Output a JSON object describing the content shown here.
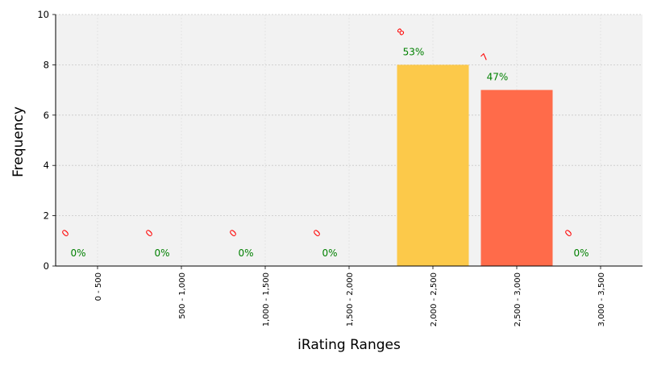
{
  "chart_data": {
    "type": "bar",
    "xlabel": "iRating Ranges",
    "ylabel": "Frequency",
    "ylim": [
      0,
      10
    ],
    "yticks": [
      0,
      2,
      4,
      6,
      8,
      10
    ],
    "grid": true,
    "categories": [
      "0 - 500",
      "500 - 1,000",
      "1,000 - 1,500",
      "1,500 - 2,000",
      "2,000 - 2,500",
      "2,500 - 3,000",
      "3,000 - 3,500"
    ],
    "values": [
      0,
      0,
      0,
      0,
      8,
      7,
      0
    ],
    "count_labels": [
      "0",
      "0",
      "0",
      "0",
      "8",
      "7",
      "0"
    ],
    "percent_labels": [
      "0%",
      "0%",
      "0%",
      "0%",
      "53%",
      "47%",
      "0%"
    ],
    "bar_colors": [
      "#fcc94a",
      "#fcc94a",
      "#fcc94a",
      "#fcc94a",
      "#fcc94a",
      "#ff6b4a",
      "#ff6b4a"
    ],
    "count_label_color": "#ff0000",
    "percent_label_color": "#008000",
    "plot_background": "#f2f2f2"
  }
}
